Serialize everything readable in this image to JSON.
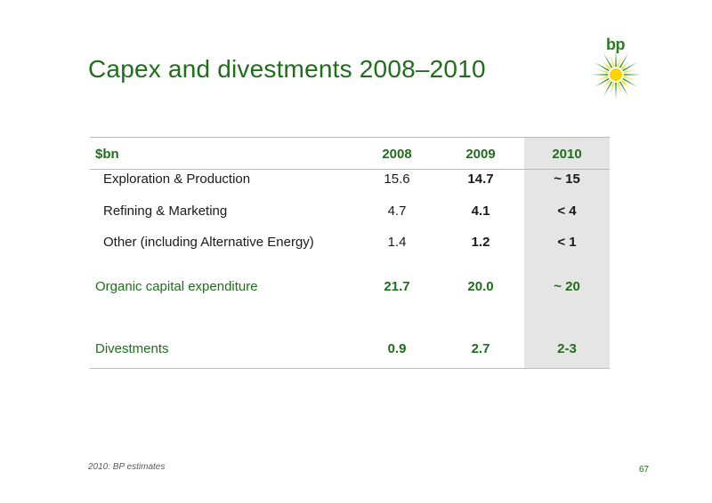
{
  "slide": {
    "title": "Capex and divestments 2008–2010",
    "logo_text": "bp",
    "footnote": "2010: BP estimates",
    "page_number": "67"
  },
  "table": {
    "headers": [
      "$bn",
      "2008",
      "2009",
      "2010"
    ],
    "rows": [
      {
        "label": "Exploration & Production",
        "v2008": "15.6",
        "v2009": "14.7",
        "v2010": "~ 15"
      },
      {
        "label": "Refining & Marketing",
        "v2008": "4.7",
        "v2009": "4.1",
        "v2010": "< 4"
      },
      {
        "label": "Other (including Alternative Energy)",
        "v2008": "1.4",
        "v2009": "1.2",
        "v2010": "< 1"
      },
      {
        "label": "Organic capital expenditure",
        "v2008": "21.7",
        "v2009": "20.0",
        "v2010": "~ 20"
      },
      {
        "label": "Divestments",
        "v2008": "0.9",
        "v2009": "2.7",
        "v2010": "2-3"
      }
    ]
  },
  "colors": {
    "brand_green": "#1f6e1a",
    "logo_yellow": "#ffd500",
    "logo_green": "#2a9a2a",
    "column_highlight": "#e5e5e5"
  }
}
